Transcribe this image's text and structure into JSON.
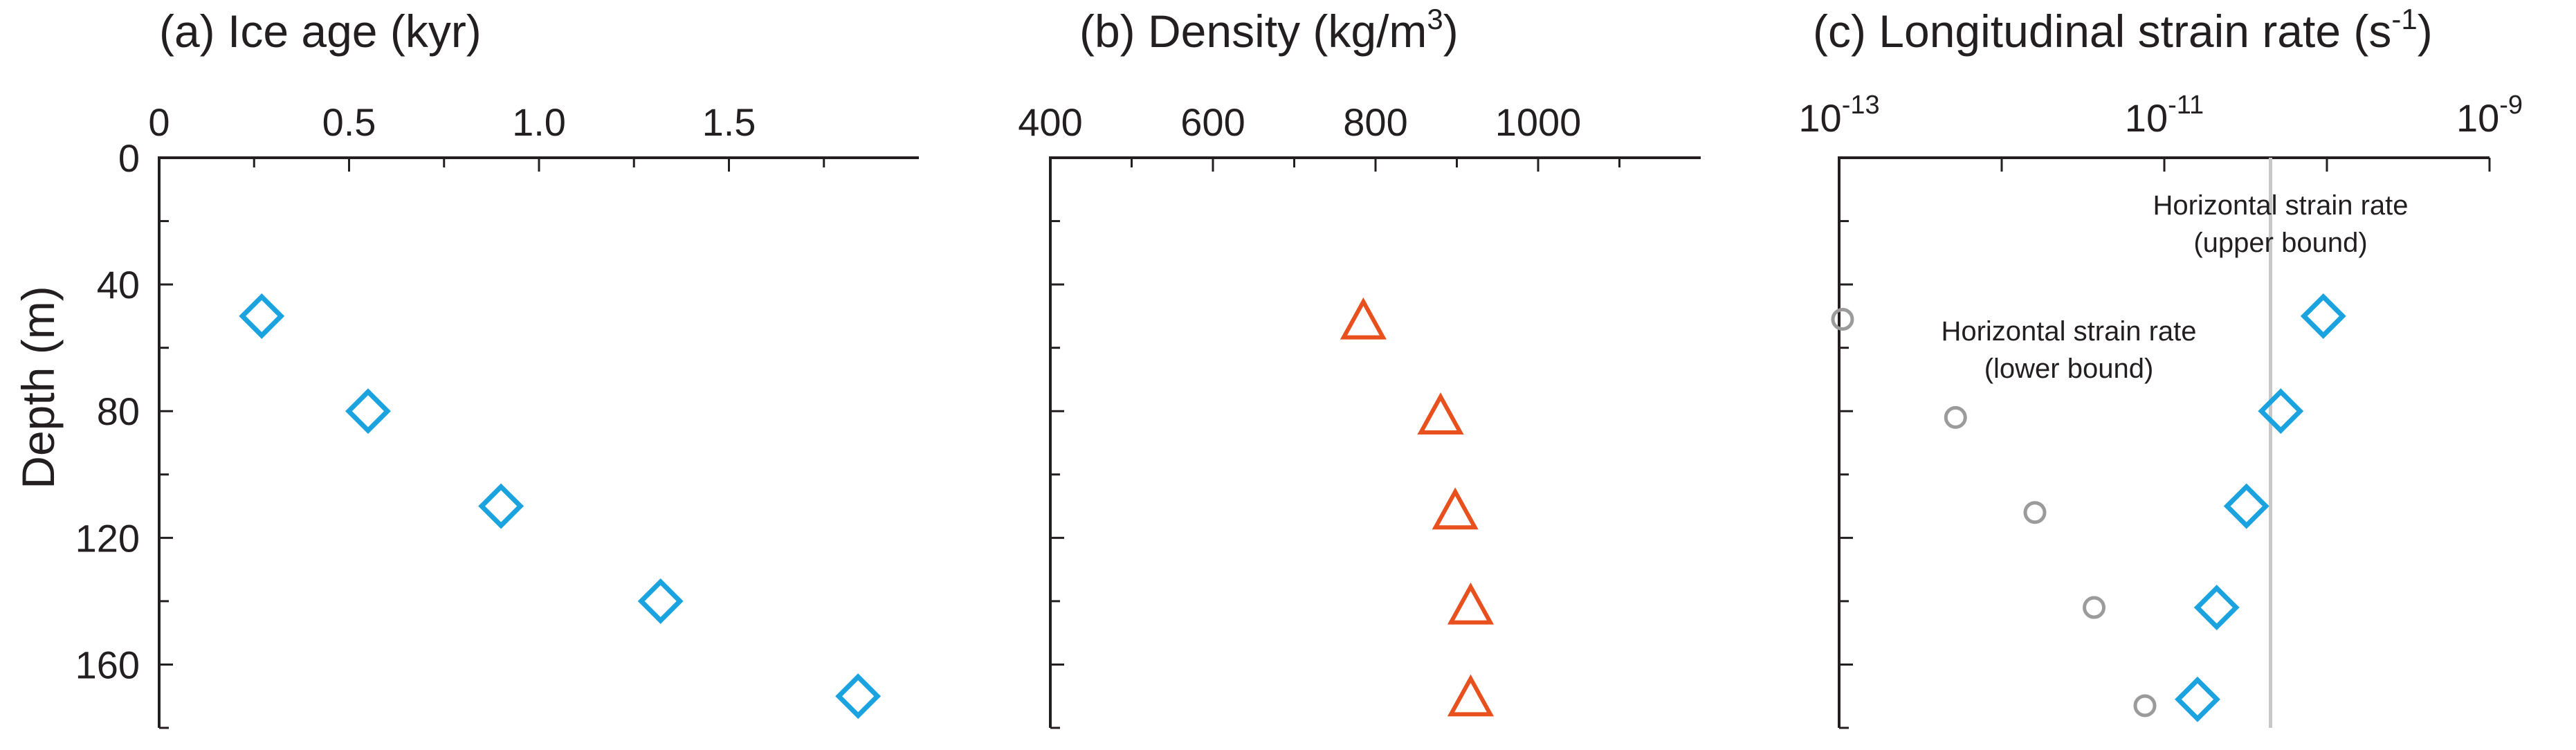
{
  "chart_data": [
    {
      "type": "scatter",
      "panel": "a",
      "title": "(a) Ice age (kyr)",
      "xlabel": "",
      "ylabel": "Depth (m)",
      "xlim": [
        0,
        2.0
      ],
      "ylim": [
        0,
        180
      ],
      "y_inverted": true,
      "x_axis_position": "top",
      "x_ticks": [
        0,
        0.5,
        1.0,
        1.5
      ],
      "x_tick_labels": [
        "0",
        "0.5",
        "1.0",
        "1.5"
      ],
      "y_ticks": [
        0,
        40,
        80,
        120,
        160
      ],
      "y_tick_labels": [
        "0",
        "40",
        "80",
        "120",
        "160"
      ],
      "marker": "diamond",
      "color": "#1ba3e0",
      "series": [
        {
          "points": [
            {
              "x": 0.27,
              "y": 50
            },
            {
              "x": 0.55,
              "y": 80
            },
            {
              "x": 0.9,
              "y": 110
            },
            {
              "x": 1.32,
              "y": 140
            },
            {
              "x": 1.84,
              "y": 170
            }
          ]
        }
      ]
    },
    {
      "type": "scatter",
      "panel": "b",
      "title": "(b) Density (kg/m",
      "title_superscript": "3",
      "title_suffix": ")",
      "xlabel": "",
      "ylabel": "",
      "xlim": [
        400,
        1200
      ],
      "ylim": [
        0,
        180
      ],
      "y_inverted": true,
      "x_axis_position": "top",
      "x_ticks": [
        400,
        600,
        800,
        1000
      ],
      "x_tick_labels": [
        "400",
        "600",
        "800",
        "1000"
      ],
      "marker": "triangle",
      "color": "#e8501e",
      "series": [
        {
          "points": [
            {
              "x": 785,
              "y": 52
            },
            {
              "x": 880,
              "y": 82
            },
            {
              "x": 898,
              "y": 112
            },
            {
              "x": 917,
              "y": 142
            },
            {
              "x": 917,
              "y": 171
            }
          ]
        }
      ]
    },
    {
      "type": "scatter",
      "panel": "c",
      "title": "(c) Longitudinal strain rate (s",
      "title_superscript": "-1",
      "title_suffix": ")",
      "xlabel": "",
      "ylabel": "",
      "x_scale": "log",
      "xlim": [
        1e-13,
        1e-09
      ],
      "ylim": [
        0,
        180
      ],
      "y_inverted": true,
      "x_axis_position": "top",
      "x_ticks": [
        1e-13,
        1e-11,
        1e-09
      ],
      "x_tick_labels": [
        {
          "base": "10",
          "exp": "-13"
        },
        {
          "base": "10",
          "exp": "-11"
        },
        {
          "base": "10",
          "exp": "-9"
        }
      ],
      "vertical_line": {
        "x": 4.5e-11,
        "color": "#c8c8c8"
      },
      "annotations": [
        {
          "lines": [
            "Horizontal strain rate",
            "(upper bound)"
          ]
        },
        {
          "lines": [
            "Horizontal strain rate",
            "(lower bound)"
          ]
        }
      ],
      "series": [
        {
          "marker": "diamond",
          "color": "#1ba3e0",
          "points": [
            {
              "x": 9.5e-11,
              "y": 50
            },
            {
              "x": 5.2e-11,
              "y": 80
            },
            {
              "x": 3.2e-11,
              "y": 110
            },
            {
              "x": 2.1e-11,
              "y": 142
            },
            {
              "x": 1.6e-11,
              "y": 171
            }
          ]
        },
        {
          "marker": "circle",
          "color": "#9b9b9b",
          "points": [
            {
              "x": 1.05e-13,
              "y": 51
            },
            {
              "x": 5.2e-13,
              "y": 82
            },
            {
              "x": 1.6e-12,
              "y": 112
            },
            {
              "x": 3.7e-12,
              "y": 142
            },
            {
              "x": 7.6e-12,
              "y": 173
            }
          ]
        }
      ]
    }
  ]
}
